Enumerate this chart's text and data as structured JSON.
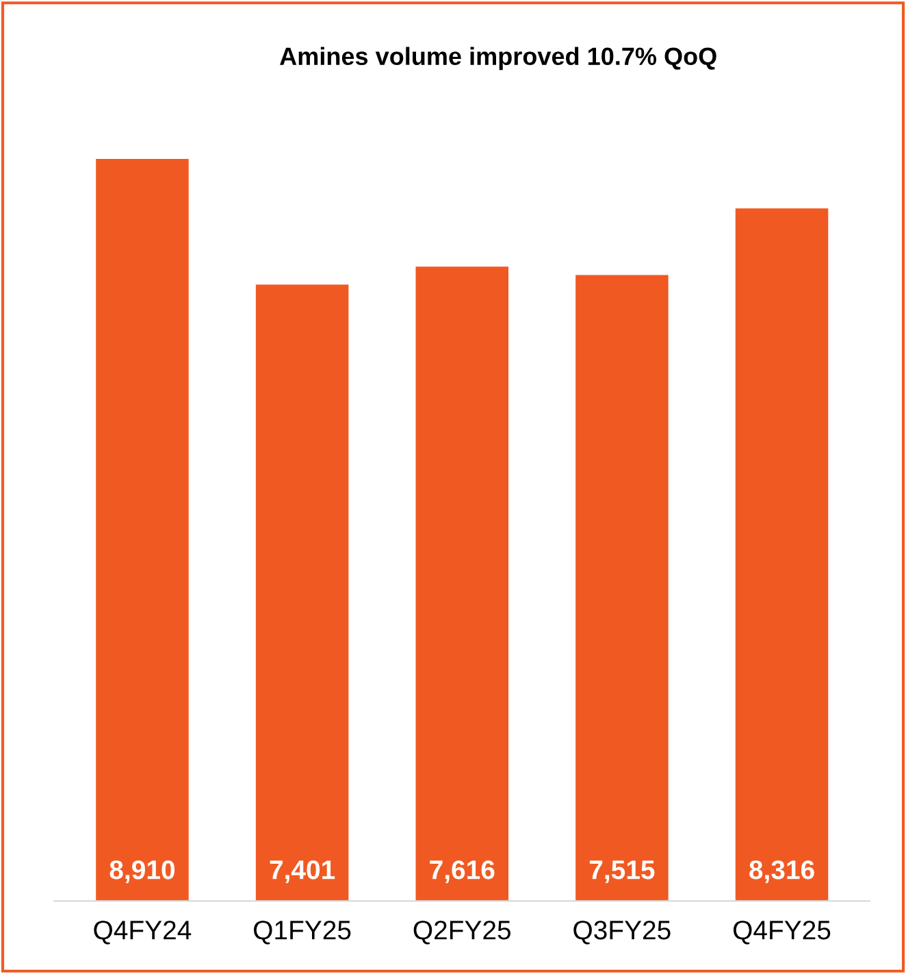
{
  "chart_data": {
    "type": "bar",
    "title": "Amines volume improved 10.7% QoQ",
    "categories": [
      "Q4FY24",
      "Q1FY25",
      "Q2FY25",
      "Q3FY25",
      "Q4FY25"
    ],
    "values": [
      8910,
      7401,
      7616,
      7515,
      8316
    ],
    "value_labels": [
      "8,910",
      "7,401",
      "7,616",
      "7,515",
      "8,316"
    ],
    "color": "#f05a22",
    "grid": false,
    "legend": false
  }
}
